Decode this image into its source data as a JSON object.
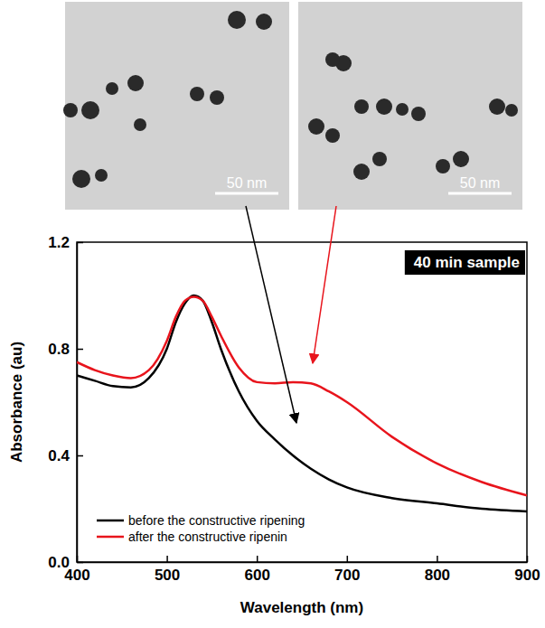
{
  "chart_data": {
    "type": "line",
    "annotation": "40 min sample",
    "x_label": "Wavelength (nm)",
    "y_label": "Absorbance (au)",
    "x": [
      400,
      420,
      440,
      460,
      480,
      500,
      510,
      520,
      530,
      540,
      550,
      560,
      580,
      600,
      620,
      640,
      660,
      680,
      700,
      750,
      800,
      850,
      900
    ],
    "series": [
      {
        "name": "before the constructive ripening",
        "color": "#000000",
        "values": [
          0.7,
          0.68,
          0.66,
          0.655,
          0.69,
          0.8,
          0.9,
          0.97,
          1.0,
          0.98,
          0.9,
          0.8,
          0.64,
          0.53,
          0.46,
          0.4,
          0.35,
          0.31,
          0.28,
          0.24,
          0.22,
          0.2,
          0.19
        ]
      },
      {
        "name": "after the constructive ripenin",
        "color": "#e8141c",
        "values": [
          0.75,
          0.72,
          0.7,
          0.69,
          0.72,
          0.83,
          0.92,
          0.98,
          0.995,
          0.98,
          0.92,
          0.85,
          0.73,
          0.675,
          0.67,
          0.675,
          0.67,
          0.64,
          0.6,
          0.47,
          0.37,
          0.3,
          0.25
        ]
      }
    ],
    "xlim": [
      400,
      900
    ],
    "xticks": [
      400,
      500,
      600,
      700,
      800,
      900
    ],
    "ylim": [
      0,
      1.2
    ],
    "yticks": [
      {
        "value": 0,
        "label": "0.0"
      },
      {
        "value": 0.4,
        "label": "0.4"
      },
      {
        "value": 0.8,
        "label": "0.8"
      },
      {
        "value": 1.2,
        "label": "1.2"
      }
    ],
    "grid": false,
    "legend": "lower left"
  },
  "images": [
    {
      "scale_bar": "50 nm"
    },
    {
      "scale_bar": "50 nm"
    }
  ]
}
